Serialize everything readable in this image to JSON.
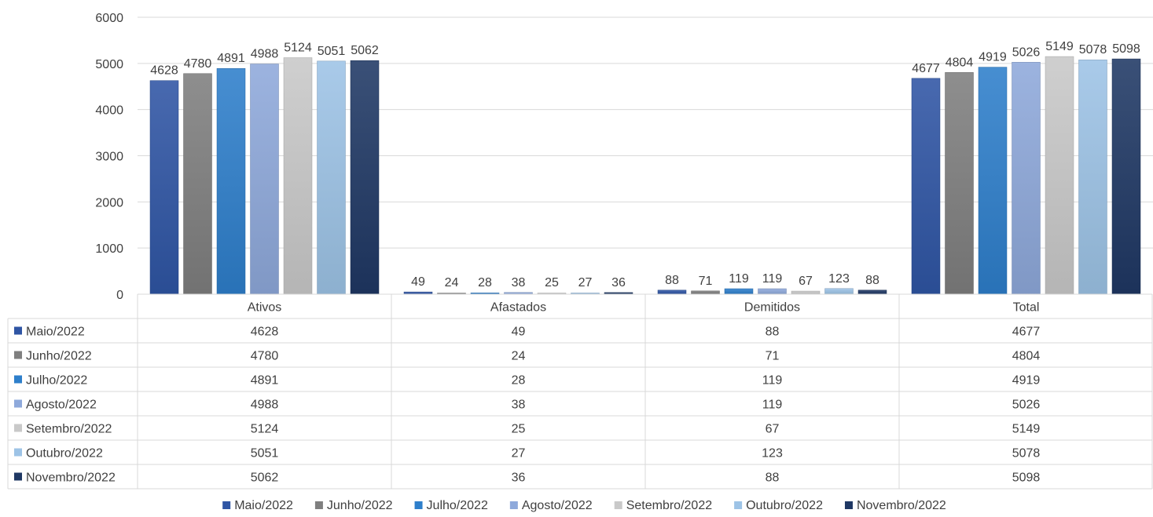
{
  "chart_data": {
    "type": "bar",
    "title": "",
    "xlabel": "",
    "ylabel": "",
    "categories": [
      "Ativos",
      "Afastados",
      "Demitidos",
      "Total"
    ],
    "ylim": [
      0,
      6000
    ],
    "yticks": [
      0,
      1000,
      2000,
      3000,
      4000,
      5000,
      6000
    ],
    "grid": true,
    "legend_position": "bottom",
    "data_table": true,
    "series": [
      {
        "name": "Maio/2022",
        "values": [
          4628,
          49,
          88,
          4677
        ],
        "color": "#2F55A4"
      },
      {
        "name": "Junho/2022",
        "values": [
          4780,
          24,
          71,
          4804
        ],
        "color": "#7F7F7F"
      },
      {
        "name": "Julho/2022",
        "values": [
          4891,
          28,
          119,
          4919
        ],
        "color": "#2E7FCB"
      },
      {
        "name": "Agosto/2022",
        "values": [
          4988,
          38,
          119,
          5026
        ],
        "color": "#8EA9DB"
      },
      {
        "name": "Setembro/2022",
        "values": [
          5124,
          25,
          67,
          5149
        ],
        "color": "#C9C9C9"
      },
      {
        "name": "Outubro/2022",
        "values": [
          5051,
          27,
          123,
          5078
        ],
        "color": "#9DC3E6"
      },
      {
        "name": "Novembro/2022",
        "values": [
          5062,
          36,
          88,
          5098
        ],
        "color": "#1F3864"
      }
    ]
  }
}
